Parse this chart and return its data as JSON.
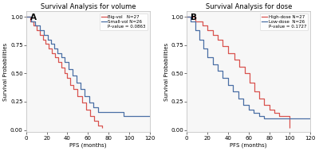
{
  "panel_A": {
    "title": "Survival Analysis for volume",
    "xlabel": "PFS (months)",
    "ylabel": "Survival Probabilities",
    "label": "A",
    "legend_line1": "Big-vol   N=27",
    "legend_line2": "Small-vol N=26",
    "legend_pval": "P-value = 0.0863",
    "big_vol_times": [
      0,
      4,
      7,
      10,
      13,
      16,
      19,
      22,
      25,
      28,
      31,
      34,
      37,
      40,
      43,
      46,
      50,
      54,
      58,
      62,
      66,
      70,
      74
    ],
    "big_vol_surv": [
      1.0,
      0.96,
      0.92,
      0.88,
      0.84,
      0.8,
      0.76,
      0.72,
      0.68,
      0.64,
      0.6,
      0.55,
      0.5,
      0.46,
      0.4,
      0.36,
      0.3,
      0.24,
      0.18,
      0.12,
      0.08,
      0.04,
      0.02
    ],
    "big_vol_color": "#d9534f",
    "small_vol_times": [
      0,
      5,
      9,
      13,
      17,
      21,
      24,
      27,
      30,
      34,
      37,
      41,
      45,
      49,
      53,
      57,
      61,
      65,
      70,
      80,
      95,
      110,
      120
    ],
    "small_vol_surv": [
      1.0,
      0.96,
      0.92,
      0.88,
      0.84,
      0.8,
      0.76,
      0.72,
      0.68,
      0.64,
      0.6,
      0.54,
      0.48,
      0.42,
      0.36,
      0.3,
      0.24,
      0.2,
      0.16,
      0.16,
      0.12,
      0.12,
      0.12
    ],
    "small_vol_color": "#4a6fa5"
  },
  "panel_B": {
    "title": "Survival Analysis for dose",
    "xlabel": "PFS (months)",
    "ylabel": "Survival Probabilities",
    "label": "B",
    "legend_line1": "High-dose N=27",
    "legend_line2": "Low-dose  N=26",
    "legend_pval": "P-value = 0.1727",
    "high_dose_times": [
      0,
      8,
      15,
      20,
      25,
      30,
      35,
      40,
      46,
      51,
      56,
      61,
      66,
      70,
      75,
      80,
      85,
      90,
      95,
      100
    ],
    "high_dose_surv": [
      1.0,
      0.96,
      0.92,
      0.88,
      0.84,
      0.8,
      0.74,
      0.68,
      0.62,
      0.56,
      0.5,
      0.42,
      0.34,
      0.28,
      0.22,
      0.18,
      0.15,
      0.12,
      0.12,
      0.02
    ],
    "high_dose_color": "#d9534f",
    "low_dose_times": [
      0,
      4,
      8,
      12,
      16,
      20,
      25,
      30,
      35,
      40,
      45,
      50,
      55,
      60,
      65,
      70,
      75,
      95,
      110,
      120
    ],
    "low_dose_surv": [
      1.0,
      0.96,
      0.88,
      0.8,
      0.72,
      0.64,
      0.58,
      0.52,
      0.46,
      0.4,
      0.34,
      0.28,
      0.22,
      0.18,
      0.15,
      0.12,
      0.1,
      0.1,
      0.1,
      0.1
    ],
    "low_dose_color": "#4a6fa5"
  },
  "xlim": [
    0,
    120
  ],
  "ylim": [
    -0.02,
    1.05
  ],
  "yticks": [
    0.0,
    0.25,
    0.5,
    0.75,
    1.0
  ],
  "ytick_labels": [
    "0.00",
    "0.25",
    "0.50",
    "0.75",
    "1.00"
  ],
  "xticks": [
    0,
    20,
    40,
    60,
    80,
    100,
    120
  ],
  "bg_color": "#ffffff",
  "plot_bg": "#f7f7f7",
  "font_size": 5.0,
  "title_font_size": 6.0,
  "label_font_size": 7.5,
  "legend_font_size": 4.0,
  "line_width": 0.9
}
